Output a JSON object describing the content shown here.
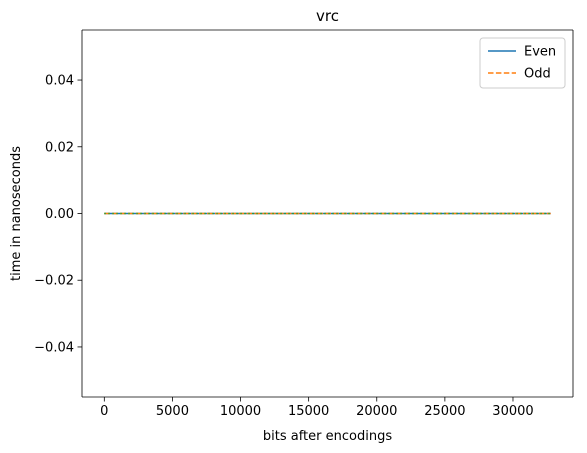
{
  "chart_data": {
    "type": "line",
    "title": "vrc",
    "xlabel": "bits after encodings",
    "ylabel": "time in nanoseconds",
    "xlim": [
      -1638,
      34406
    ],
    "ylim": [
      -0.055,
      0.055
    ],
    "xticks": [
      0,
      5000,
      10000,
      15000,
      20000,
      25000,
      30000
    ],
    "xtick_labels": [
      "0",
      "5000",
      "10000",
      "15000",
      "20000",
      "25000",
      "30000"
    ],
    "yticks": [
      -0.04,
      -0.02,
      0.0,
      0.02,
      0.04
    ],
    "ytick_labels": [
      "−0.04",
      "−0.02",
      "0.00",
      "0.02",
      "0.04"
    ],
    "grid": false,
    "legend_position": "top-right",
    "series": [
      {
        "name": "Even",
        "style": "solid",
        "color": "#1f77b4",
        "x": [
          0,
          32768
        ],
        "y": [
          0,
          0
        ]
      },
      {
        "name": "Odd",
        "style": "dashed",
        "color": "#ff7f0e",
        "x": [
          0,
          32768
        ],
        "y": [
          0,
          0
        ]
      },
      {
        "name": "",
        "style": "dotted",
        "color": "#2ca02c",
        "x": [
          0,
          32768
        ],
        "y": [
          0,
          0
        ]
      }
    ]
  }
}
